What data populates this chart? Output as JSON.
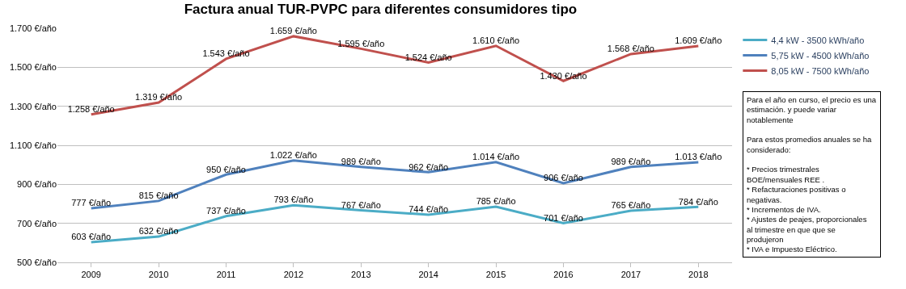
{
  "chart_data": {
    "type": "line",
    "title": "Factura anual TUR-PVPC para diferentes consumidores tipo",
    "categories": [
      "2009",
      "2010",
      "2011",
      "2012",
      "2013",
      "2014",
      "2015",
      "2016",
      "2017",
      "2018"
    ],
    "series": [
      {
        "name": "4,4 kW - 3500 kWh/año",
        "color": "#4bacc6",
        "values": [
          603,
          632,
          737,
          793,
          767,
          744,
          785,
          701,
          765,
          784
        ],
        "value_labels": [
          "603 €/año",
          "632 €/año",
          "737 €/año",
          "793 €/año",
          "767 €/año",
          "744 €/año",
          "785 €/año",
          "701 €/año",
          "765 €/año",
          "784 €/año"
        ]
      },
      {
        "name": "5,75 kW - 4500 kWh/año",
        "color": "#4f81bd",
        "values": [
          777,
          815,
          950,
          1022,
          989,
          962,
          1014,
          906,
          989,
          1013
        ],
        "value_labels": [
          "777 €/año",
          "815 €/año",
          "950 €/año",
          "1.022 €/año",
          "989 €/año",
          "962 €/año",
          "1.014 €/año",
          "906 €/año",
          "989 €/año",
          "1.013 €/año"
        ]
      },
      {
        "name": "8,05 kW - 7500 kWh/año",
        "color": "#c0504d",
        "values": [
          1258,
          1319,
          1543,
          1659,
          1595,
          1524,
          1610,
          1430,
          1568,
          1609
        ],
        "value_labels": [
          "1.258 €/año",
          "1.319 €/año",
          "1.543 €/año",
          "1.659 €/año",
          "1.595 €/año",
          "1.524 €/año",
          "1.610 €/año",
          "1.430 €/año",
          "1.568 €/año",
          "1.609 €/año"
        ]
      }
    ],
    "ylim": [
      500,
      1700
    ],
    "yticks": [
      {
        "value": 500,
        "label": "500 €/año"
      },
      {
        "value": 700,
        "label": "700 €/año"
      },
      {
        "value": 900,
        "label": "900 €/año"
      },
      {
        "value": 1100,
        "label": "1.100 €/año"
      },
      {
        "value": 1300,
        "label": "1.300 €/año"
      },
      {
        "value": 1500,
        "label": "1.500 €/año"
      },
      {
        "value": 1700,
        "label": "1.700 €/año"
      }
    ],
    "grid": "y",
    "legend": "top right",
    "marker": "none",
    "line_style": "solid",
    "annotations": [
      "Para el año en curso, el precio es una\nestimación. y puede variar\nnotablemente\n\nPara estos promedios anuales se ha\nconsiderado:\n\n* Precios trimestrales\nBOE/mensuales REE .\n* Refacturaciones positivas o\nnegativas.\n* Incrementos de IVA.\n* Ajustes de peajes, proporcionales\nal trimestre en que que se\nprodujeron\n* IVA e Impuesto Eléctrico."
    ]
  }
}
